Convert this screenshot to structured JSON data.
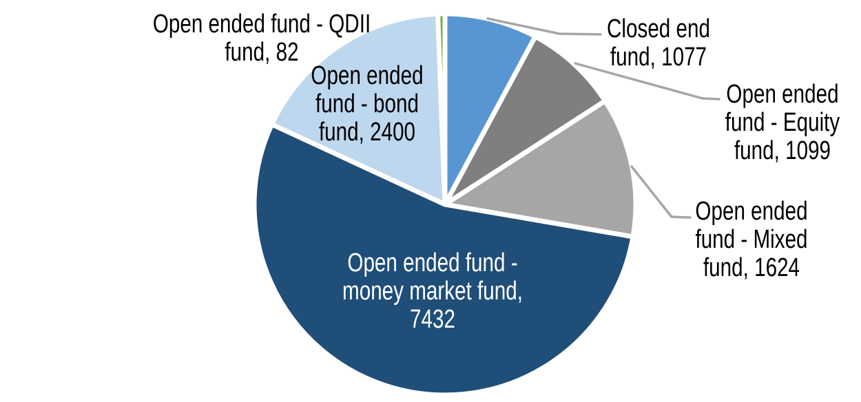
{
  "chart_data": {
    "type": "pie",
    "background_color": "#FFFFFF",
    "leader_line_color": "#A6A6A6",
    "slices": [
      {
        "name": "Closed end fund",
        "value": 1077,
        "color": "#5896D3",
        "label_lines": [
          "Closed end",
          "fund, 1077"
        ],
        "label_color": "#000000",
        "has_leader_line": true
      },
      {
        "name": "Open ended fund - Equity fund",
        "value": 1099,
        "color": "#7F7F7F",
        "label_lines": [
          "Open ended",
          "fund - Equity",
          "fund, 1099"
        ],
        "label_color": "#000000",
        "has_leader_line": true
      },
      {
        "name": "Open ended fund - Mixed fund",
        "value": 1624,
        "color": "#A6A6A6",
        "label_lines": [
          "Open ended",
          "fund - Mixed",
          "fund, 1624"
        ],
        "label_color": "#000000",
        "has_leader_line": true
      },
      {
        "name": "Open ended fund - money market fund",
        "value": 7432,
        "color": "#1F4E78",
        "label_lines": [
          "Open ended fund -",
          "money market fund,",
          "7432"
        ],
        "label_color": "#FFFFFF",
        "has_leader_line": false
      },
      {
        "name": "Open ended fund - bond fund",
        "value": 2400,
        "color": "#BDD7EE",
        "label_lines": [
          "Open ended",
          "fund - bond",
          "fund, 2400"
        ],
        "label_color": "#000000",
        "has_leader_line": false
      },
      {
        "name": "Open ended fund - QDII fund",
        "value": 82,
        "color": "#70AD47",
        "label_lines": [
          "Open ended fund - QDII",
          "fund, 82"
        ],
        "label_color": "#000000",
        "has_leader_line": false
      }
    ]
  }
}
